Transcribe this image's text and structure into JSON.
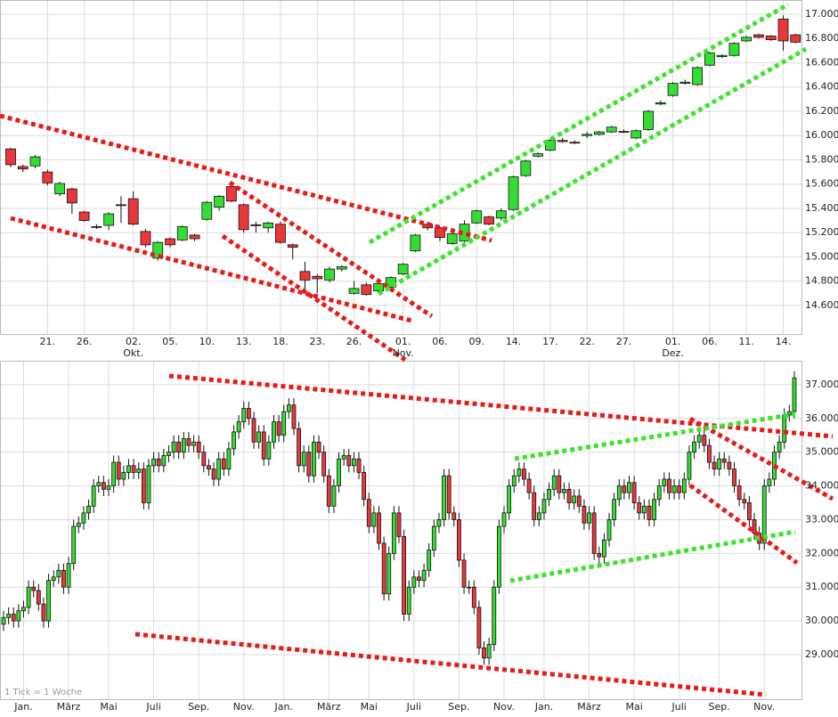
{
  "chart_data": [
    {
      "type": "candlestick",
      "up_color": "#33dd33",
      "down_color": "#e8383d",
      "grid": true,
      "categories": [
        null,
        null,
        null,
        "21.",
        null,
        null,
        "26.",
        null,
        null,
        null,
        "02.",
        null,
        null,
        "05.",
        null,
        null,
        "10.",
        null,
        null,
        "13.",
        null,
        null,
        "18.",
        null,
        null,
        "23.",
        null,
        null,
        "26.",
        null,
        null,
        null,
        "01.",
        null,
        null,
        "06.",
        null,
        null,
        "09.",
        null,
        null,
        "14.",
        null,
        null,
        "17.",
        null,
        null,
        "22.",
        null,
        null,
        "27.",
        null,
        null,
        null,
        "01.",
        null,
        null,
        "06.",
        null,
        null,
        "11.",
        null,
        null,
        "14.",
        null
      ],
      "month_labels": [
        null,
        null,
        null,
        null,
        null,
        null,
        null,
        null,
        null,
        null,
        "Okt.",
        null,
        null,
        null,
        null,
        null,
        null,
        null,
        null,
        null,
        null,
        null,
        null,
        null,
        null,
        null,
        null,
        null,
        null,
        null,
        null,
        null,
        "Nov.",
        null,
        null,
        null,
        null,
        null,
        null,
        null,
        null,
        null,
        null,
        null,
        null,
        null,
        null,
        null,
        null,
        null,
        null,
        null,
        null,
        null,
        "Dez.",
        null,
        null,
        null,
        null,
        null,
        null,
        null,
        null,
        null,
        null
      ],
      "open": [
        15890,
        15745,
        15750,
        15700,
        15520,
        15560,
        15370,
        15245,
        15260,
        15430,
        15480,
        15210,
        14990,
        15150,
        15140,
        15180,
        15310,
        15410,
        15580,
        15430,
        15265,
        15240,
        15270,
        15100,
        14880,
        14840,
        14810,
        14900,
        14700,
        14770,
        14720,
        14750,
        14860,
        15050,
        15270,
        15240,
        15110,
        15130,
        15280,
        15330,
        15320,
        15390,
        15670,
        15830,
        15880,
        15960,
        15945,
        16000,
        16010,
        16030,
        16030,
        15980,
        16050,
        16260,
        16330,
        16430,
        16420,
        16580,
        16650,
        16660,
        16780,
        16830,
        16820,
        16960,
        16830
      ],
      "high": [
        15900,
        15760,
        15840,
        15720,
        15620,
        15570,
        15380,
        15270,
        15370,
        15500,
        15540,
        15230,
        15130,
        15160,
        15260,
        15190,
        15460,
        15510,
        15600,
        15440,
        15290,
        15290,
        15290,
        15110,
        14960,
        14860,
        14920,
        14930,
        14800,
        14790,
        14800,
        14840,
        14950,
        15190,
        15290,
        15250,
        15200,
        15300,
        15390,
        15340,
        15400,
        15670,
        15800,
        15860,
        15970,
        15980,
        15960,
        16030,
        16040,
        16080,
        16050,
        16050,
        16210,
        16290,
        16440,
        16460,
        16570,
        16690,
        16670,
        16770,
        16820,
        16840,
        16830,
        16990,
        16840
      ],
      "low": [
        15740,
        15700,
        15730,
        15590,
        15500,
        15355,
        15290,
        15230,
        15220,
        15280,
        15260,
        15080,
        14970,
        15080,
        15130,
        15130,
        15300,
        15380,
        15450,
        15200,
        15200,
        15200,
        15110,
        14980,
        14720,
        14700,
        14790,
        14880,
        14690,
        14680,
        14700,
        14730,
        14850,
        15040,
        15220,
        15130,
        15100,
        15110,
        15270,
        15260,
        15300,
        15380,
        15660,
        15820,
        15870,
        15940,
        15930,
        15980,
        16000,
        16020,
        16020,
        15970,
        16040,
        16250,
        16320,
        16420,
        16410,
        16570,
        16640,
        16650,
        16770,
        16800,
        16780,
        16700,
        16760
      ],
      "close": [
        15760,
        15725,
        15825,
        15610,
        15605,
        15445,
        15300,
        15250,
        15355,
        15430,
        15270,
        15100,
        15120,
        15100,
        15250,
        15150,
        15450,
        15500,
        15460,
        15225,
        15260,
        15280,
        15120,
        15080,
        14810,
        14820,
        14900,
        14920,
        14740,
        14690,
        14780,
        14830,
        14940,
        15180,
        15240,
        15160,
        15190,
        15270,
        15380,
        15270,
        15380,
        15660,
        15790,
        15850,
        15960,
        15950,
        15940,
        16010,
        16030,
        16070,
        16035,
        16040,
        16200,
        16270,
        16430,
        16440,
        16560,
        16680,
        16660,
        16760,
        16810,
        16810,
        16790,
        16780,
        16770
      ],
      "ylim": [
        14365,
        17117
      ],
      "yticks": [
        {
          "value": 14600,
          "label": "14.600"
        },
        {
          "value": 14800,
          "label": "14.800"
        },
        {
          "value": 15000,
          "label": "15.000"
        },
        {
          "value": 15200,
          "label": "15.200"
        },
        {
          "value": 15400,
          "label": "15.400"
        },
        {
          "value": 15600,
          "label": "15.600"
        },
        {
          "value": 15800,
          "label": "15.800"
        },
        {
          "value": 16000,
          "label": "16.000"
        },
        {
          "value": 16200,
          "label": "16.200"
        },
        {
          "value": 16400,
          "label": "16.400"
        },
        {
          "value": 16600,
          "label": "16.600"
        },
        {
          "value": 16800,
          "label": "16.800"
        },
        {
          "value": 17000,
          "label": "17.000"
        }
      ]
    },
    {
      "type": "candlestick",
      "up_color": "#33dd33",
      "down_color": "#e8383d",
      "grid": true,
      "annotation": "1 Tick = 1 Woche",
      "categories": [
        null,
        null,
        null,
        null,
        "Jan.",
        null,
        null,
        null,
        null,
        null,
        null,
        null,
        null,
        "März",
        null,
        null,
        null,
        null,
        null,
        null,
        null,
        "Mai",
        null,
        null,
        null,
        null,
        null,
        null,
        null,
        null,
        "Juli",
        null,
        null,
        null,
        null,
        null,
        null,
        null,
        null,
        "Sep.",
        null,
        null,
        null,
        null,
        null,
        null,
        null,
        null,
        "Nov.",
        null,
        null,
        null,
        null,
        null,
        null,
        null,
        "Jan.",
        null,
        null,
        null,
        null,
        null,
        null,
        null,
        null,
        "März",
        null,
        null,
        null,
        null,
        null,
        null,
        null,
        "Mai",
        null,
        null,
        null,
        null,
        null,
        null,
        null,
        null,
        "Juli",
        null,
        null,
        null,
        null,
        null,
        null,
        null,
        null,
        "Sep.",
        null,
        null,
        null,
        null,
        null,
        null,
        null,
        null,
        "Nov.",
        null,
        null,
        null,
        null,
        null,
        null,
        null,
        "Jan.",
        null,
        null,
        null,
        null,
        null,
        null,
        null,
        null,
        "März",
        null,
        null,
        null,
        null,
        null,
        null,
        null,
        null,
        "Mai",
        null,
        null,
        null,
        null,
        null,
        null,
        null,
        null,
        "Juli",
        null,
        null,
        null,
        null,
        null,
        null,
        null,
        "Sep.",
        null,
        null,
        null,
        null,
        null,
        null,
        null,
        null,
        "Nov.",
        null,
        null,
        null,
        null,
        null,
        null
      ],
      "open": [
        29900,
        30100,
        30200,
        30000,
        30300,
        30400,
        31000,
        30900,
        30500,
        30000,
        31200,
        31300,
        31500,
        31000,
        31700,
        32800,
        32900,
        33200,
        33400,
        34000,
        34100,
        33900,
        34000,
        34700,
        34200,
        34400,
        34600,
        34400,
        34500,
        33500,
        34600,
        34800,
        34600,
        34900,
        35000,
        35300,
        35000,
        35400,
        35200,
        35300,
        35000,
        34600,
        34500,
        34200,
        34800,
        34500,
        35100,
        35600,
        35900,
        36300,
        36000,
        35300,
        35600,
        34800,
        35300,
        35900,
        35500,
        36200,
        36400,
        35700,
        34600,
        35000,
        34300,
        35300,
        35000,
        34300,
        33400,
        34000,
        34800,
        34900,
        34600,
        34800,
        34400,
        33600,
        32800,
        33200,
        32300,
        30800,
        32000,
        33200,
        32500,
        30200,
        31000,
        31300,
        31200,
        31500,
        32100,
        32800,
        33000,
        34300,
        33200,
        33000,
        31800,
        31000,
        31000,
        30400,
        29200,
        28900,
        29300,
        31000,
        32800,
        33200,
        34000,
        34300,
        34500,
        34200,
        33800,
        33000,
        33200,
        33600,
        33900,
        34300,
        33800,
        33900,
        33500,
        33700,
        33400,
        32900,
        33200,
        32000,
        31900,
        32400,
        33000,
        33600,
        34000,
        33800,
        34100,
        33500,
        33200,
        33400,
        33000,
        33600,
        34000,
        34200,
        33800,
        34000,
        33800,
        34200,
        35000,
        35300,
        35500,
        35200,
        34700,
        34500,
        34800,
        34700,
        34500,
        34000,
        33600,
        33500,
        33000,
        32600,
        32300,
        34000,
        34200,
        35000,
        35300,
        36100,
        36200
      ],
      "high": [
        30300,
        30400,
        30400,
        30500,
        30600,
        31200,
        31200,
        31100,
        30700,
        31400,
        31500,
        31700,
        31700,
        31900,
        33000,
        33100,
        33400,
        33600,
        34200,
        34300,
        34300,
        34200,
        34900,
        34900,
        34600,
        34800,
        34800,
        34700,
        34700,
        34800,
        35000,
        35000,
        35100,
        35200,
        35500,
        35500,
        35600,
        35600,
        35500,
        35500,
        35200,
        34800,
        34700,
        35000,
        35000,
        35300,
        35800,
        36100,
        36500,
        36500,
        36200,
        35800,
        35800,
        35500,
        36100,
        36100,
        36400,
        36600,
        36600,
        35900,
        35200,
        35200,
        35500,
        35500,
        35200,
        34500,
        34200,
        35000,
        35100,
        35100,
        35000,
        35000,
        34600,
        33800,
        33400,
        33400,
        32500,
        32200,
        33400,
        33400,
        32700,
        31200,
        31500,
        31500,
        31700,
        32300,
        33000,
        33200,
        34500,
        34500,
        33400,
        33200,
        32000,
        31200,
        31200,
        30600,
        29400,
        29500,
        31200,
        33000,
        33400,
        34200,
        34500,
        34700,
        34700,
        34400,
        34000,
        33400,
        33800,
        34100,
        34500,
        34500,
        34100,
        34100,
        33900,
        33900,
        33600,
        33400,
        33400,
        32200,
        32600,
        33200,
        33800,
        34200,
        34200,
        34300,
        34300,
        33700,
        33600,
        33600,
        33800,
        34200,
        34400,
        34400,
        34200,
        34200,
        34400,
        35200,
        35500,
        35700,
        35700,
        35400,
        34900,
        35000,
        35000,
        34900,
        34700,
        34200,
        33800,
        33700,
        33200,
        32800,
        34200,
        34400,
        35200,
        35500,
        36300,
        36400,
        37400
      ],
      "low": [
        29700,
        29900,
        29800,
        29800,
        30100,
        30200,
        30700,
        30300,
        29800,
        29800,
        31000,
        31100,
        30800,
        30800,
        31500,
        32600,
        32700,
        33000,
        33200,
        33800,
        33700,
        33700,
        33800,
        34000,
        34000,
        34200,
        34200,
        34200,
        33300,
        33300,
        34400,
        34400,
        34400,
        34700,
        34800,
        34800,
        34800,
        35000,
        35000,
        34800,
        34400,
        34300,
        34000,
        34000,
        34300,
        34300,
        34900,
        35400,
        35700,
        35800,
        35100,
        35100,
        34600,
        34600,
        35100,
        35300,
        35300,
        36000,
        35500,
        34400,
        34400,
        34100,
        34100,
        34800,
        34100,
        33200,
        33200,
        33800,
        34600,
        34400,
        34400,
        34200,
        33400,
        32600,
        32600,
        32100,
        30600,
        30600,
        31800,
        32300,
        30000,
        30000,
        30800,
        31000,
        31000,
        31300,
        31900,
        32600,
        32800,
        33000,
        32800,
        31600,
        30800,
        30800,
        30200,
        29000,
        28700,
        28700,
        29100,
        30800,
        32600,
        33000,
        33800,
        34100,
        34000,
        33600,
        32800,
        32800,
        33000,
        33400,
        33700,
        33600,
        33600,
        33300,
        33300,
        33200,
        32700,
        32700,
        31800,
        31700,
        31700,
        32200,
        32800,
        33400,
        33600,
        33600,
        33300,
        33000,
        33000,
        32800,
        32800,
        33400,
        33800,
        33600,
        33600,
        33600,
        33600,
        34000,
        34800,
        35100,
        35000,
        34500,
        34300,
        34300,
        34500,
        34300,
        33800,
        33400,
        33300,
        32800,
        32400,
        32100,
        32100,
        33800,
        34000,
        34800,
        35100,
        35900,
        36000
      ],
      "close": [
        30100,
        30200,
        30000,
        30300,
        30400,
        31000,
        30900,
        30500,
        30000,
        31200,
        31300,
        31500,
        31000,
        31700,
        32800,
        32900,
        33200,
        33400,
        34000,
        34100,
        33900,
        34000,
        34700,
        34200,
        34400,
        34600,
        34400,
        34500,
        33500,
        34600,
        34800,
        34600,
        34900,
        35000,
        35300,
        35000,
        35400,
        35200,
        35300,
        35000,
        34600,
        34500,
        34200,
        34800,
        34500,
        35100,
        35600,
        35900,
        36300,
        36000,
        35300,
        35600,
        34800,
        35300,
        35900,
        35500,
        36200,
        36400,
        35700,
        34600,
        35000,
        34300,
        35300,
        35000,
        34300,
        33400,
        34000,
        34800,
        34900,
        34600,
        34800,
        34400,
        33600,
        32800,
        33200,
        32300,
        30800,
        32000,
        33200,
        32500,
        30200,
        31000,
        31300,
        31200,
        31500,
        32100,
        32800,
        33000,
        34300,
        33200,
        33000,
        31800,
        31000,
        31000,
        30400,
        29200,
        28900,
        29300,
        31000,
        32800,
        33200,
        34000,
        34300,
        34500,
        34200,
        33800,
        33000,
        33200,
        33600,
        33900,
        34300,
        33800,
        33900,
        33500,
        33700,
        33400,
        32900,
        33200,
        32000,
        31900,
        32400,
        33000,
        33600,
        34000,
        33800,
        34100,
        33500,
        33200,
        33400,
        33000,
        33600,
        34000,
        34200,
        33800,
        34000,
        33800,
        34200,
        35000,
        35300,
        35500,
        35200,
        34700,
        34500,
        34800,
        34700,
        34500,
        34000,
        33600,
        33500,
        33000,
        32600,
        32300,
        34000,
        34200,
        35000,
        35300,
        36100,
        36200,
        37200
      ],
      "ylim": [
        27680,
        37710
      ],
      "yticks": [
        {
          "value": 29000,
          "label": "29.000"
        },
        {
          "value": 30000,
          "label": "30.000"
        },
        {
          "value": 31000,
          "label": "31.000"
        },
        {
          "value": 32000,
          "label": "32.000"
        },
        {
          "value": 33000,
          "label": "33.000"
        },
        {
          "value": 34000,
          "label": "34.000"
        },
        {
          "value": 35000,
          "label": "35.000"
        },
        {
          "value": 36000,
          "label": "36.000"
        },
        {
          "value": 37000,
          "label": "37.000"
        }
      ]
    }
  ]
}
